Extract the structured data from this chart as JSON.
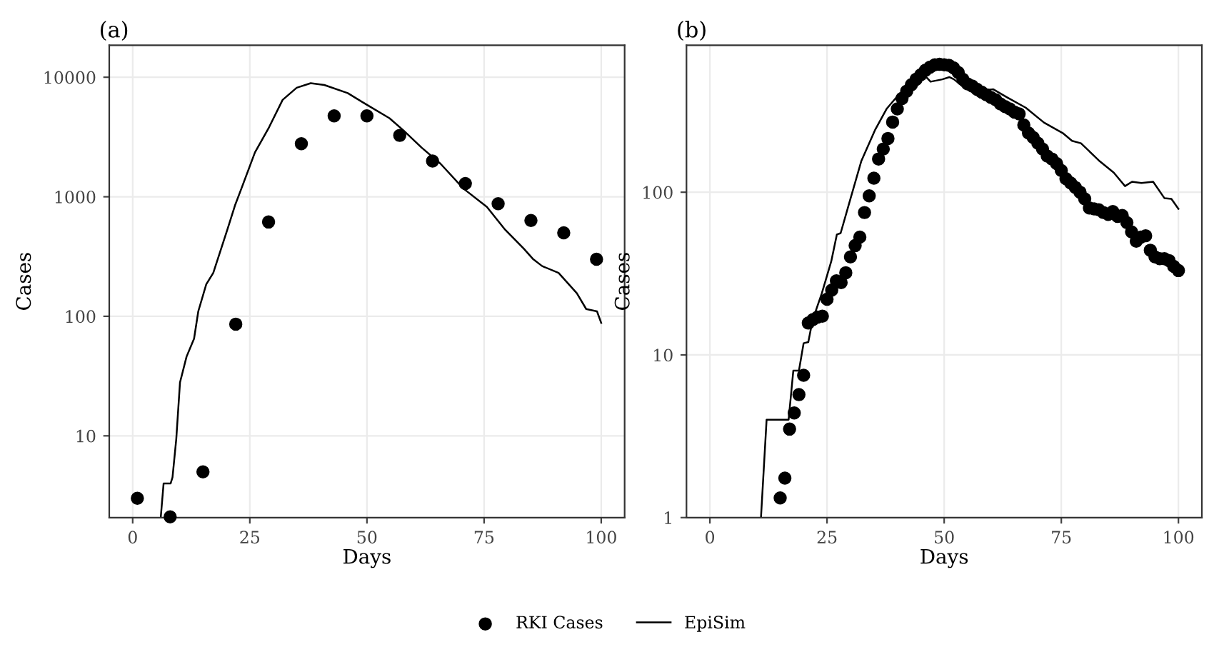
{
  "chart_data": [
    {
      "type": "scatter",
      "title": "(a)",
      "xlabel": "Days",
      "ylabel": "Cases",
      "log": "y",
      "xlim": [
        -5,
        105
      ],
      "xticks": [
        0,
        25,
        50,
        75,
        100
      ],
      "ylim": [
        2.07,
        18500
      ],
      "yticks": [
        10,
        100,
        1000,
        10000
      ],
      "grid": true,
      "legend": "bottom",
      "series": [
        {
          "name": "RKI Cases",
          "color": "#000000",
          "marker": "circle",
          "x": [
            1,
            8,
            15,
            22,
            29,
            36,
            43,
            50,
            57,
            64,
            71,
            78,
            85,
            92,
            99
          ],
          "values": [
            3.0,
            2.1,
            5.0,
            86,
            615,
            2780,
            4750,
            4750,
            3260,
            1990,
            1290,
            875,
            633,
            500,
            300
          ]
        },
        {
          "name": "EpiSim",
          "type": "line",
          "color": "#000000",
          "line_style": "solid",
          "x": [
            6.0,
            6.6,
            8.1,
            8.5,
            9.3,
            10.1,
            11.5,
            13.1,
            14.0,
            15.7,
            17.2,
            20.2,
            21.9,
            23.2,
            26.1,
            29.1,
            32.0,
            35.0,
            38.0,
            40.9,
            45.9,
            49.9,
            54.8,
            57.8,
            61.7,
            65.7,
            70.6,
            75.6,
            79.5,
            83.5,
            85.5,
            87.4,
            90.9,
            94.8,
            96.8,
            99.1,
            100
          ],
          "values": [
            2.1,
            4.0,
            4.0,
            4.5,
            9.4,
            28,
            46,
            65,
            110,
            185,
            231,
            530,
            860,
            1170,
            2350,
            3810,
            6460,
            8170,
            8920,
            8610,
            7370,
            5910,
            4540,
            3590,
            2570,
            1890,
            1170,
            822,
            530,
            367,
            300,
            263,
            231,
            156,
            115,
            110,
            88
          ]
        }
      ]
    },
    {
      "type": "scatter",
      "title": "(b)",
      "xlabel": "Days",
      "ylabel": "Cases",
      "log": "y",
      "xlim": [
        -5,
        105
      ],
      "xticks": [
        0,
        25,
        50,
        75,
        100
      ],
      "ylim": [
        1,
        800
      ],
      "yticks": [
        1,
        10,
        100
      ],
      "grid": true,
      "legend": "bottom",
      "series": [
        {
          "name": "RKI Cases",
          "color": "#000000",
          "marker": "circle",
          "x": [
            15,
            16,
            17,
            18,
            19,
            20,
            21,
            22,
            23,
            24,
            25,
            26,
            27,
            28,
            29,
            30,
            31,
            32,
            33,
            34,
            35,
            36,
            37,
            38,
            39,
            40,
            41,
            42,
            43,
            44,
            45,
            46,
            47,
            48,
            49,
            50,
            51,
            52,
            53,
            54,
            55,
            56,
            57,
            58,
            59,
            60,
            61,
            62,
            63,
            64,
            65,
            66,
            67,
            68,
            69,
            70,
            71,
            72,
            73,
            74,
            75,
            76,
            77,
            78,
            79,
            80,
            81,
            82,
            83,
            84,
            85,
            86,
            87,
            88,
            89,
            90,
            91,
            92,
            93,
            94,
            95,
            96,
            97,
            98,
            99,
            100
          ],
          "values": [
            1.32,
            1.75,
            3.5,
            4.4,
            5.7,
            7.5,
            15.7,
            16.5,
            17.1,
            17.3,
            22,
            25,
            28.5,
            27.8,
            32,
            40,
            47,
            53,
            75,
            95,
            122,
            160,
            184,
            214,
            270,
            325,
            377,
            418,
            457,
            494,
            527,
            562,
            588,
            607,
            611,
            607,
            603,
            581,
            544,
            494,
            463,
            449,
            429,
            412,
            397,
            382,
            370,
            349,
            336,
            325,
            311,
            303,
            259,
            231,
            217,
            200,
            184,
            167,
            160,
            150,
            136,
            121,
            114,
            107,
            100,
            91,
            80,
            79,
            78,
            75,
            73,
            76,
            71,
            72,
            65,
            57,
            50,
            53,
            54,
            44,
            40,
            39,
            39,
            38,
            35,
            33
          ]
        },
        {
          "name": "EpiSim",
          "type": "line",
          "color": "#000000",
          "line_style": "solid",
          "x": [
            10.9,
            12.1,
            16.8,
            17.8,
            19.0,
            20.0,
            21.0,
            21.9,
            23.9,
            25.9,
            27.1,
            27.9,
            29.8,
            32.3,
            35.3,
            37.7,
            40.2,
            42.7,
            45.7,
            47.1,
            49.6,
            51.1,
            52.1,
            54.5,
            57.5,
            60.5,
            63.5,
            67.4,
            71.3,
            75.3,
            77.3,
            79.2,
            83.2,
            86.2,
            88.6,
            90.1,
            92.1,
            94.6,
            97.0,
            98.5,
            100
          ],
          "values": [
            1,
            4.0,
            4.0,
            8.0,
            8.0,
            11.8,
            12,
            16.3,
            24,
            37.6,
            55,
            56,
            87,
            155,
            243,
            325,
            395,
            449,
            527,
            478,
            494,
            510,
            494,
            434,
            421,
            429,
            382,
            331,
            268,
            231,
            207,
            200,
            155,
            132,
            109,
            116,
            114,
            116,
            92,
            91,
            79
          ]
        }
      ]
    }
  ]
}
